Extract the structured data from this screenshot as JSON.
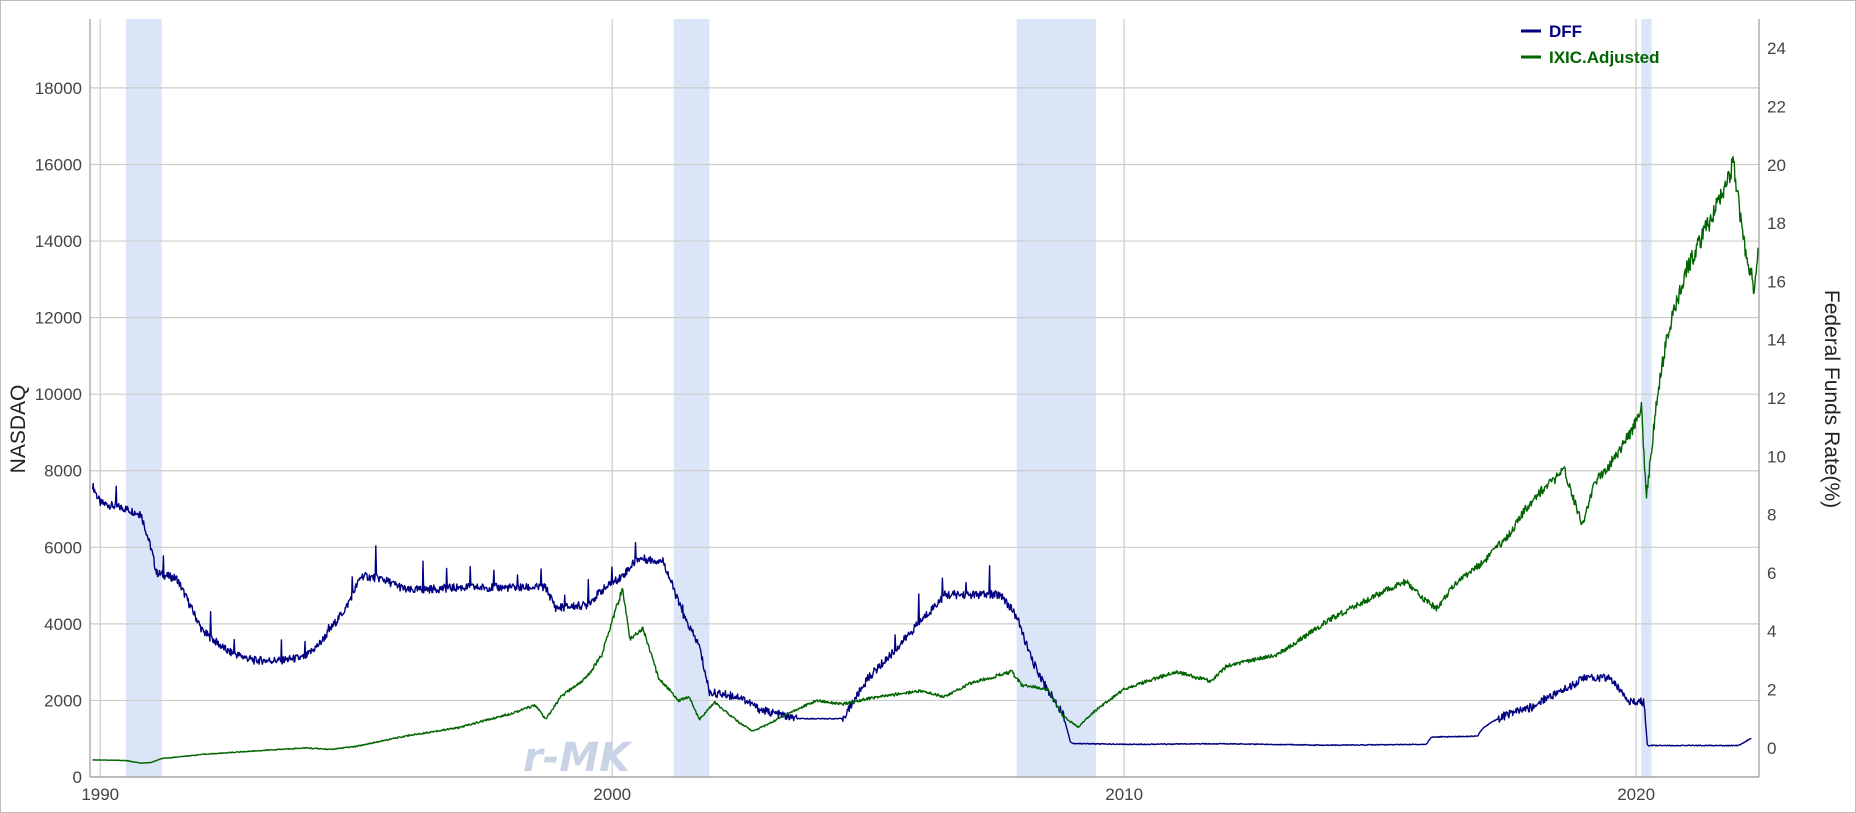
{
  "chart_data": {
    "type": "line",
    "title": "",
    "xlabel": "",
    "ylabel_left": "NASDAQ",
    "ylabel_right": "Federal Funds Rate(%)",
    "xlim": [
      1989.8,
      2022.4
    ],
    "ylim_left": [
      0,
      19800
    ],
    "ylim_right": [
      -1,
      25
    ],
    "x_ticks": [
      1990,
      2000,
      2010,
      2020
    ],
    "x_tick_labels": [
      "1990",
      "2000",
      "2010",
      "2020"
    ],
    "y_left_ticks": [
      0,
      2000,
      4000,
      6000,
      8000,
      10000,
      12000,
      14000,
      16000,
      18000
    ],
    "y_left_tick_labels": [
      "0",
      "2000",
      "4000",
      "6000",
      "8000",
      "10000",
      "12000",
      "14000",
      "16000",
      "18000"
    ],
    "y_right_ticks": [
      0,
      2,
      4,
      6,
      8,
      10,
      12,
      14,
      16,
      18,
      20,
      22,
      24
    ],
    "y_right_tick_labels": [
      "0",
      "2",
      "4",
      "6",
      "8",
      "10",
      "12",
      "14",
      "16",
      "18",
      "20",
      "22",
      "24"
    ],
    "grid": true,
    "legend_position": "top-right",
    "recessions": [
      {
        "start": 1990.5,
        "end": 1991.2
      },
      {
        "start": 2001.2,
        "end": 2001.9
      },
      {
        "start": 2007.9,
        "end": 2009.45
      },
      {
        "start": 2020.1,
        "end": 2020.3
      }
    ],
    "series": [
      {
        "name": "DFF",
        "axis": "right",
        "color": "#000080",
        "points": [
          [
            1989.85,
            9.0
          ],
          [
            1990.0,
            8.4
          ],
          [
            1990.5,
            8.2
          ],
          [
            1990.8,
            8.0
          ],
          [
            1991.0,
            6.8
          ],
          [
            1991.1,
            6.0
          ],
          [
            1991.5,
            5.8
          ],
          [
            1992.0,
            4.0
          ],
          [
            1992.5,
            3.3
          ],
          [
            1993.0,
            3.0
          ],
          [
            1993.5,
            3.0
          ],
          [
            1994.0,
            3.1
          ],
          [
            1994.3,
            3.6
          ],
          [
            1994.8,
            4.8
          ],
          [
            1995.1,
            5.9
          ],
          [
            1995.5,
            5.8
          ],
          [
            1996.0,
            5.4
          ],
          [
            1997.0,
            5.5
          ],
          [
            1998.0,
            5.5
          ],
          [
            1998.7,
            5.5
          ],
          [
            1998.9,
            4.8
          ],
          [
            1999.5,
            4.9
          ],
          [
            1999.8,
            5.4
          ],
          [
            2000.2,
            5.9
          ],
          [
            2000.5,
            6.5
          ],
          [
            2001.0,
            6.4
          ],
          [
            2001.4,
            4.5
          ],
          [
            2001.7,
            3.5
          ],
          [
            2001.9,
            1.9
          ],
          [
            2002.5,
            1.75
          ],
          [
            2002.9,
            1.3
          ],
          [
            2003.6,
            1.0
          ],
          [
            2004.5,
            1.0
          ],
          [
            2005.0,
            2.4
          ],
          [
            2005.5,
            3.3
          ],
          [
            2006.0,
            4.3
          ],
          [
            2006.5,
            5.25
          ],
          [
            2007.6,
            5.25
          ],
          [
            2007.9,
            4.5
          ],
          [
            2008.2,
            3.0
          ],
          [
            2008.5,
            2.0
          ],
          [
            2008.8,
            1.2
          ],
          [
            2008.95,
            0.2
          ],
          [
            2009.0,
            0.15
          ],
          [
            2010.0,
            0.12
          ],
          [
            2012.0,
            0.14
          ],
          [
            2014.0,
            0.09
          ],
          [
            2015.9,
            0.12
          ],
          [
            2016.0,
            0.37
          ],
          [
            2016.9,
            0.4
          ],
          [
            2017.0,
            0.66
          ],
          [
            2017.2,
            0.91
          ],
          [
            2017.5,
            1.16
          ],
          [
            2018.0,
            1.41
          ],
          [
            2018.2,
            1.68
          ],
          [
            2018.5,
            1.91
          ],
          [
            2018.8,
            2.2
          ],
          [
            2018.95,
            2.4
          ],
          [
            2019.5,
            2.4
          ],
          [
            2019.6,
            2.13
          ],
          [
            2019.75,
            1.9
          ],
          [
            2019.9,
            1.55
          ],
          [
            2020.15,
            1.58
          ],
          [
            2020.22,
            0.08
          ],
          [
            2021.5,
            0.08
          ],
          [
            2022.0,
            0.08
          ],
          [
            2022.25,
            0.33
          ]
        ]
      },
      {
        "name": "IXIC.Adjusted",
        "axis": "left",
        "color": "#006400",
        "points": [
          [
            1989.85,
            450
          ],
          [
            1990.5,
            430
          ],
          [
            1990.8,
            360
          ],
          [
            1991.0,
            380
          ],
          [
            1991.2,
            480
          ],
          [
            1992.0,
            590
          ],
          [
            1993.0,
            680
          ],
          [
            1994.0,
            760
          ],
          [
            1994.5,
            720
          ],
          [
            1995.0,
            800
          ],
          [
            1996.0,
            1080
          ],
          [
            1997.0,
            1290
          ],
          [
            1998.0,
            1650
          ],
          [
            1998.5,
            1880
          ],
          [
            1998.7,
            1500
          ],
          [
            1999.0,
            2100
          ],
          [
            1999.5,
            2600
          ],
          [
            1999.8,
            3200
          ],
          [
            2000.0,
            4100
          ],
          [
            2000.2,
            4900
          ],
          [
            2000.35,
            3600
          ],
          [
            2000.6,
            3900
          ],
          [
            2000.9,
            2600
          ],
          [
            2001.3,
            2000
          ],
          [
            2001.5,
            2100
          ],
          [
            2001.7,
            1500
          ],
          [
            2002.0,
            1950
          ],
          [
            2002.5,
            1400
          ],
          [
            2002.75,
            1200
          ],
          [
            2003.0,
            1350
          ],
          [
            2003.5,
            1700
          ],
          [
            2004.0,
            2000
          ],
          [
            2004.5,
            1900
          ],
          [
            2005.0,
            2050
          ],
          [
            2006.0,
            2250
          ],
          [
            2006.5,
            2100
          ],
          [
            2007.0,
            2450
          ],
          [
            2007.8,
            2750
          ],
          [
            2008.0,
            2400
          ],
          [
            2008.5,
            2300
          ],
          [
            2008.8,
            1600
          ],
          [
            2009.1,
            1300
          ],
          [
            2009.4,
            1700
          ],
          [
            2010.0,
            2300
          ],
          [
            2011.0,
            2750
          ],
          [
            2011.7,
            2500
          ],
          [
            2012.0,
            2900
          ],
          [
            2013.0,
            3200
          ],
          [
            2014.0,
            4100
          ],
          [
            2015.0,
            4800
          ],
          [
            2015.5,
            5100
          ],
          [
            2015.8,
            4700
          ],
          [
            2016.1,
            4400
          ],
          [
            2016.5,
            5100
          ],
          [
            2017.0,
            5600
          ],
          [
            2017.5,
            6300
          ],
          [
            2018.0,
            7300
          ],
          [
            2018.6,
            8000
          ],
          [
            2018.95,
            6600
          ],
          [
            2019.2,
            7700
          ],
          [
            2019.5,
            8200
          ],
          [
            2019.9,
            9000
          ],
          [
            2020.1,
            9700
          ],
          [
            2020.2,
            7300
          ],
          [
            2020.4,
            9800
          ],
          [
            2020.6,
            11500
          ],
          [
            2021.0,
            13300
          ],
          [
            2021.5,
            14700
          ],
          [
            2021.9,
            16000
          ],
          [
            2022.1,
            14000
          ],
          [
            2022.3,
            12800
          ],
          [
            2022.38,
            13700
          ]
        ]
      }
    ],
    "watermark": "r-MK"
  }
}
